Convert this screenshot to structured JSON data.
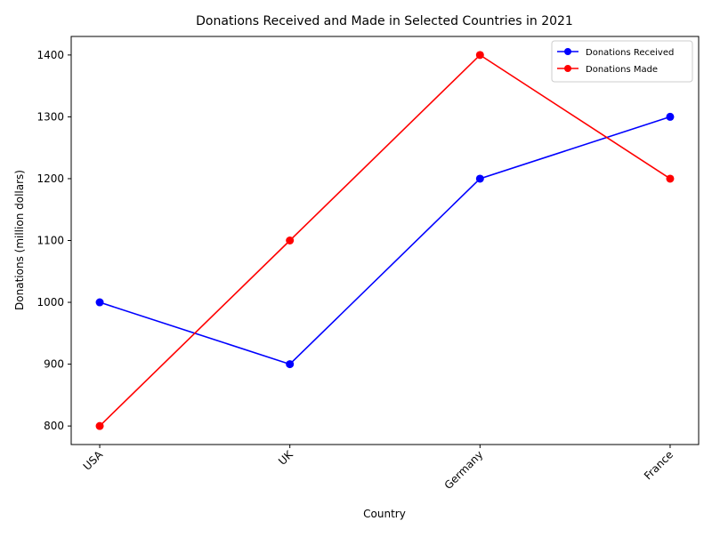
{
  "chart_data": {
    "type": "line",
    "title": "Donations Received and Made in Selected Countries in 2021",
    "xlabel": "Country",
    "ylabel": "Donations (million dollars)",
    "categories": [
      "USA",
      "UK",
      "Germany",
      "France"
    ],
    "series": [
      {
        "name": "Donations Received",
        "values": [
          1000,
          900,
          1200,
          1300
        ],
        "color": "#0000ff",
        "marker": "circle"
      },
      {
        "name": "Donations Made",
        "values": [
          800,
          1100,
          1400,
          1200
        ],
        "color": "#ff0000",
        "marker": "circle"
      }
    ],
    "ylim": [
      770,
      1430
    ],
    "yticks": [
      800,
      900,
      1000,
      1100,
      1200,
      1300,
      1400
    ],
    "grid": false,
    "legend_position": "top-right",
    "x_tick_rotation_deg": 45
  }
}
